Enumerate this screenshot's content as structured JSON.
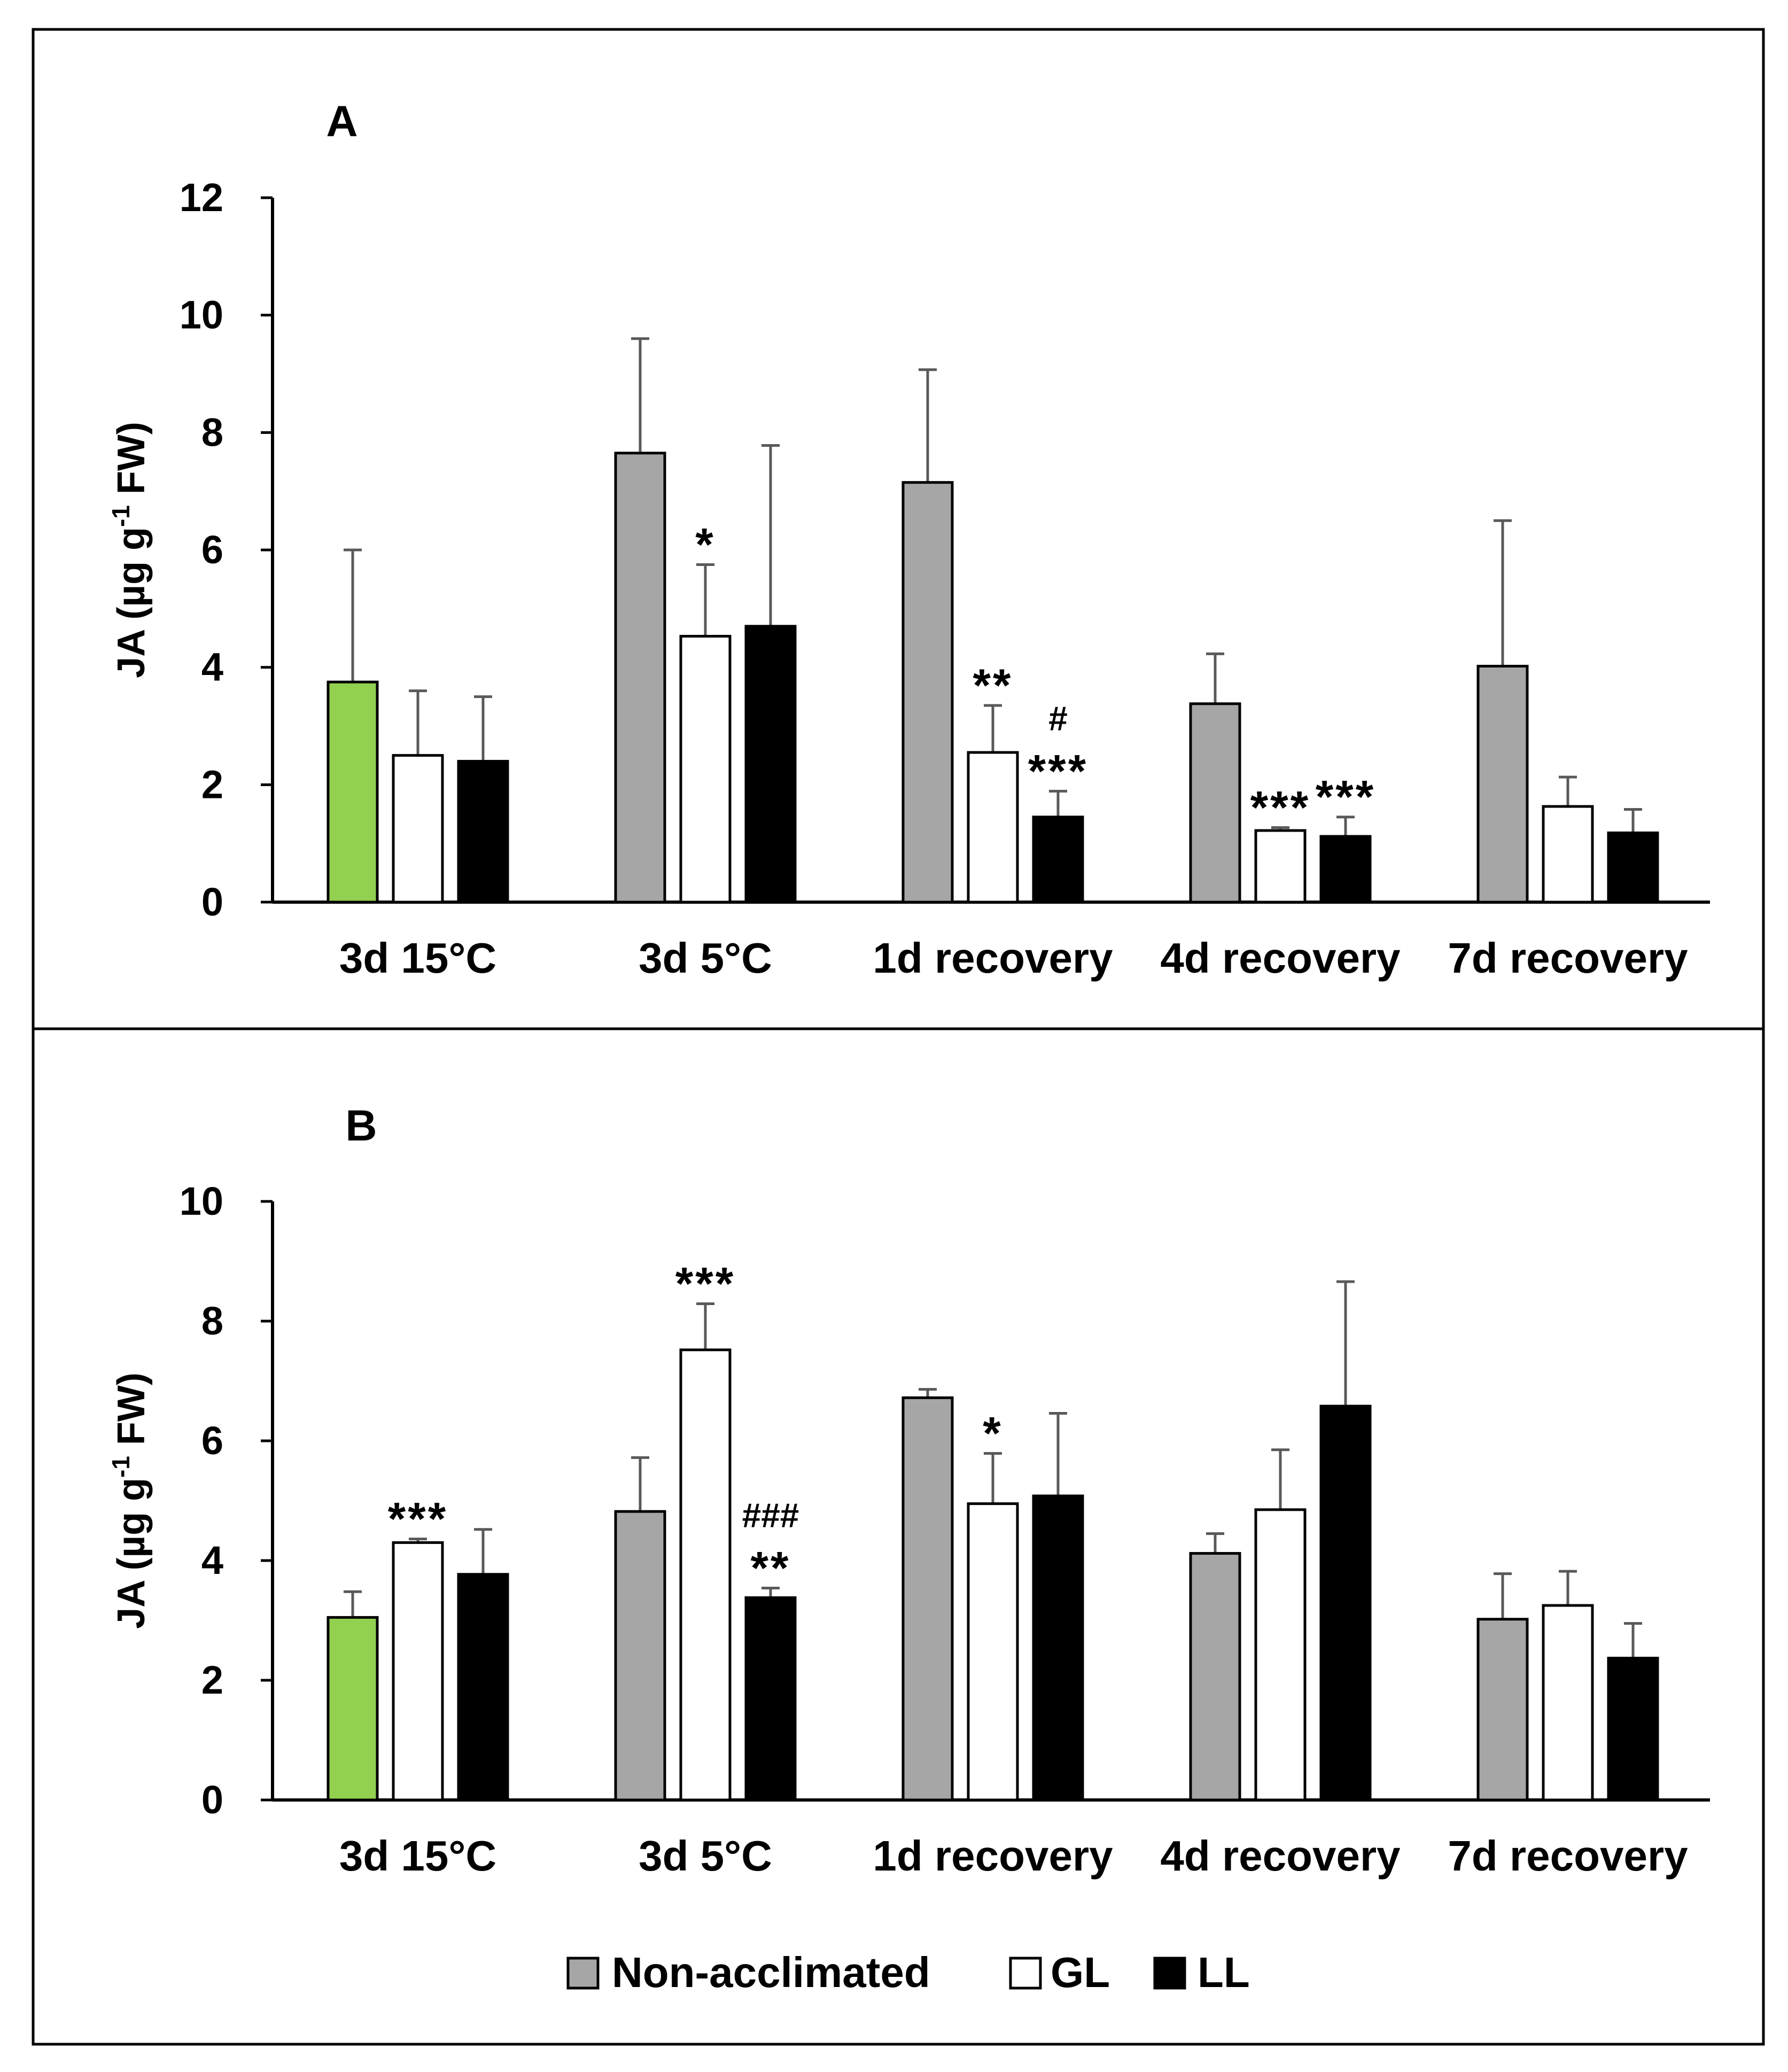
{
  "chart_data": [
    {
      "type": "bar",
      "panel_label": "A",
      "ylabel": "JA (µg g-1 FW)",
      "ylabel_main": "JA (µg g",
      "ylabel_sup": "-1",
      "ylabel_tail": " FW)",
      "ylim": [
        0,
        12
      ],
      "yticks": [
        0,
        2,
        4,
        6,
        8,
        10,
        12
      ],
      "categories": [
        "3d 15°C",
        "3d 5°C",
        "1d recovery",
        "4d recovery",
        "7d recovery"
      ],
      "series": [
        {
          "name": "Non-acclimated",
          "values": [
            3.75,
            7.65,
            7.15,
            3.38,
            4.02
          ],
          "errors": [
            2.25,
            1.95,
            1.92,
            0.85,
            2.48
          ],
          "first_bar_color": "#92d050"
        },
        {
          "name": "GL",
          "values": [
            2.5,
            4.53,
            2.55,
            1.22,
            1.63
          ],
          "errors": [
            1.1,
            1.22,
            0.8,
            0.05,
            0.5
          ]
        },
        {
          "name": "LL",
          "values": [
            2.4,
            4.7,
            1.45,
            1.12,
            1.18
          ],
          "errors": [
            1.1,
            3.08,
            0.44,
            0.33,
            0.4
          ]
        }
      ],
      "annotations": [
        {
          "category": 1,
          "series": 1,
          "lines": [
            "*"
          ]
        },
        {
          "category": 2,
          "series": 1,
          "lines": [
            "**"
          ]
        },
        {
          "category": 2,
          "series": 2,
          "lines": [
            "#",
            "***"
          ]
        },
        {
          "category": 3,
          "series": 1,
          "lines": [
            "***"
          ]
        },
        {
          "category": 3,
          "series": 2,
          "lines": [
            "***"
          ]
        }
      ]
    },
    {
      "type": "bar",
      "panel_label": "B",
      "ylabel": "JA (µg g-1 FW)",
      "ylabel_main": "JA (µg g",
      "ylabel_sup": "-1",
      "ylabel_tail": " FW)",
      "ylim": [
        0,
        10
      ],
      "yticks": [
        0,
        2,
        4,
        6,
        8,
        10
      ],
      "categories": [
        "3d 15°C",
        "3d 5°C",
        "1d recovery",
        "4d recovery",
        "7d recovery"
      ],
      "series": [
        {
          "name": "Non-acclimated",
          "values": [
            3.05,
            4.82,
            6.72,
            4.12,
            3.02
          ],
          "errors": [
            0.43,
            0.9,
            0.14,
            0.33,
            0.76
          ],
          "first_bar_color": "#92d050"
        },
        {
          "name": "GL",
          "values": [
            4.3,
            7.52,
            4.95,
            4.85,
            3.25
          ],
          "errors": [
            0.06,
            0.77,
            0.84,
            1.0,
            0.57
          ]
        },
        {
          "name": "LL",
          "values": [
            3.77,
            3.38,
            5.08,
            6.58,
            2.37
          ],
          "errors": [
            0.75,
            0.16,
            1.38,
            2.08,
            0.58
          ]
        }
      ],
      "annotations": [
        {
          "category": 0,
          "series": 1,
          "lines": [
            "***"
          ]
        },
        {
          "category": 1,
          "series": 1,
          "lines": [
            "***"
          ]
        },
        {
          "category": 1,
          "series": 2,
          "lines": [
            "###",
            "**"
          ]
        },
        {
          "category": 2,
          "series": 1,
          "lines": [
            "*"
          ]
        }
      ]
    }
  ],
  "legend": {
    "items": [
      {
        "label": "Non-acclimated",
        "color": "#a6a6a6"
      },
      {
        "label": "GL",
        "color": "#ffffff"
      },
      {
        "label": "LL",
        "color": "#000000"
      }
    ]
  },
  "colors": {
    "non_acclimated": "#a6a6a6",
    "gl": "#ffffff",
    "ll": "#000000",
    "control_green": "#92d050",
    "error_bar": "#595959"
  }
}
